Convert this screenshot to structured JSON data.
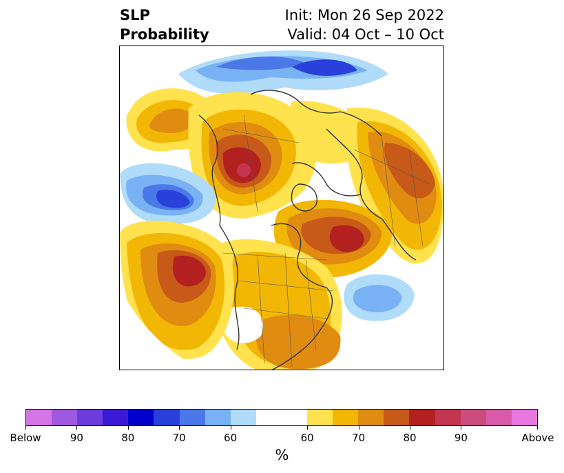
{
  "title": {
    "left_line1": "SLP",
    "left_line2": "Probability",
    "right_line1": "Init: Mon 26 Sep 2022",
    "right_line2": "Valid: 04 Oct – 10 Oct"
  },
  "colorbar": {
    "colors": [
      "#d675e8",
      "#9f59e0",
      "#6c3cdc",
      "#3b1ad6",
      "#0000cc",
      "#2940db",
      "#4b78e8",
      "#78b2f4",
      "#b0dcfa",
      "#ffffff",
      "#ffffff",
      "#ffe24d",
      "#f2b705",
      "#e08c10",
      "#c75a19",
      "#b32020",
      "#c43550",
      "#cc4d7d",
      "#d85aa8",
      "#e878e0"
    ],
    "tick_labels": [
      "Below",
      "90",
      "80",
      "70",
      "60",
      "60",
      "70",
      "80",
      "90",
      "Above"
    ],
    "units": "%"
  },
  "map": {
    "projection": "north-polar-stereographic",
    "content": "sea level pressure anomaly probability over the Northern Hemisphere"
  }
}
